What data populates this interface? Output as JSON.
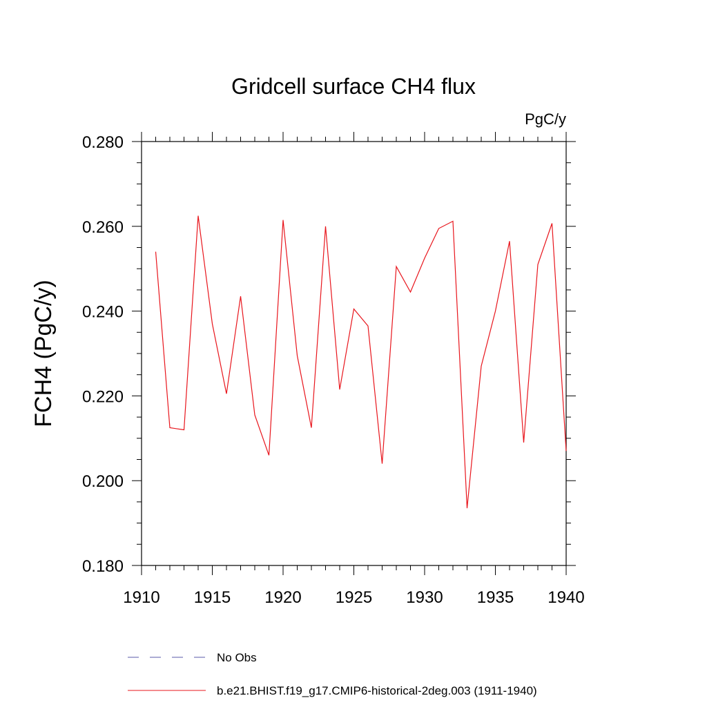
{
  "chart_data": {
    "type": "line",
    "title": "Gridcell surface CH4 flux",
    "units": "PgC/y",
    "xlabel": "",
    "ylabel": "FCH4  (PgC/y)",
    "xlim": [
      1910,
      1940
    ],
    "ylim": [
      0.18,
      0.28
    ],
    "x_ticks": [
      1910,
      1915,
      1920,
      1925,
      1930,
      1935,
      1940
    ],
    "x_tick_labels": [
      "1910",
      "1915",
      "1920",
      "1925",
      "1930",
      "1935",
      "1940"
    ],
    "y_ticks": [
      0.18,
      0.2,
      0.22,
      0.24,
      0.26,
      0.28
    ],
    "y_tick_labels": [
      "0.180",
      "0.200",
      "0.220",
      "0.240",
      "0.260",
      "0.280"
    ],
    "grid": false,
    "legend_position": "bottom",
    "series": [
      {
        "name": "b.e21.BHIST.f19_g17.CMIP6-historical-2deg.003 (1911-1940)",
        "color": "#e8141b",
        "style": "solid",
        "x": [
          1911,
          1912,
          1913,
          1914,
          1915,
          1916,
          1917,
          1918,
          1919,
          1920,
          1921,
          1922,
          1923,
          1924,
          1925,
          1926,
          1927,
          1928,
          1929,
          1930,
          1931,
          1932,
          1933,
          1934,
          1935,
          1936,
          1937,
          1938,
          1939,
          1940
        ],
        "values": [
          0.254,
          0.2125,
          0.212,
          0.2625,
          0.237,
          0.2205,
          0.2435,
          0.2155,
          0.206,
          0.2615,
          0.2295,
          0.2125,
          0.26,
          0.2215,
          0.2405,
          0.2365,
          0.204,
          0.2505,
          0.2445,
          0.2525,
          0.2595,
          0.2612,
          0.1935,
          0.227,
          0.24,
          0.2565,
          0.209,
          0.251,
          0.2607,
          0.207
        ]
      }
    ],
    "legend": [
      {
        "label": "No Obs",
        "color": "#5a5aa8",
        "style": "dashed"
      },
      {
        "label": "b.e21.BHIST.f19_g17.CMIP6-historical-2deg.003 (1911-1940)",
        "color": "#e8141b",
        "style": "solid"
      }
    ]
  }
}
